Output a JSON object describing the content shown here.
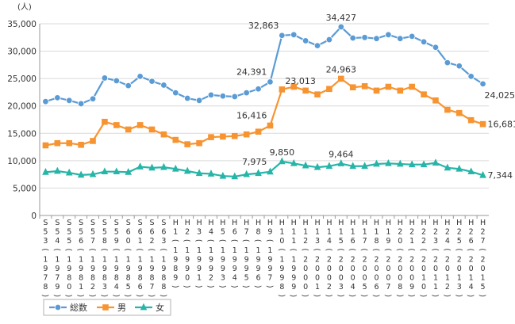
{
  "chart_data": {
    "type": "line",
    "ylabel": "(人)",
    "ylim": [
      0,
      35000
    ],
    "yticks": [
      "0",
      "5,000",
      "10,000",
      "15,000",
      "20,000",
      "25,000",
      "30,000",
      "35,000"
    ],
    "grid": true,
    "legend_position": "bottom-left",
    "categories": [
      {
        "era": "S53",
        "year": "1978"
      },
      {
        "era": "S54",
        "year": "1979"
      },
      {
        "era": "S55",
        "year": "1980"
      },
      {
        "era": "S56",
        "year": "1981"
      },
      {
        "era": "S57",
        "year": "1982"
      },
      {
        "era": "S58",
        "year": "1983"
      },
      {
        "era": "S59",
        "year": "1984"
      },
      {
        "era": "S60",
        "year": "1985"
      },
      {
        "era": "S61",
        "year": "1986"
      },
      {
        "era": "S62",
        "year": "1987"
      },
      {
        "era": "S63",
        "year": "1988"
      },
      {
        "era": "H1",
        "year": "1989"
      },
      {
        "era": "H2",
        "year": "1990"
      },
      {
        "era": "H3",
        "year": "1991"
      },
      {
        "era": "H4",
        "year": "1992"
      },
      {
        "era": "H5",
        "year": "1993"
      },
      {
        "era": "H6",
        "year": "1994"
      },
      {
        "era": "H7",
        "year": "1995"
      },
      {
        "era": "H8",
        "year": "1996"
      },
      {
        "era": "H9",
        "year": "1997"
      },
      {
        "era": "H10",
        "year": "1998"
      },
      {
        "era": "H11",
        "year": "1999"
      },
      {
        "era": "H12",
        "year": "2000"
      },
      {
        "era": "H13",
        "year": "2001"
      },
      {
        "era": "H14",
        "year": "2002"
      },
      {
        "era": "H15",
        "year": "2003"
      },
      {
        "era": "H16",
        "year": "2004"
      },
      {
        "era": "H17",
        "year": "2005"
      },
      {
        "era": "H18",
        "year": "2006"
      },
      {
        "era": "H19",
        "year": "2007"
      },
      {
        "era": "H20",
        "year": "2008"
      },
      {
        "era": "H21",
        "year": "2009"
      },
      {
        "era": "H22",
        "year": "2010"
      },
      {
        "era": "H23",
        "year": "2011"
      },
      {
        "era": "H24",
        "year": "2012"
      },
      {
        "era": "H25",
        "year": "2013"
      },
      {
        "era": "H26",
        "year": "2014"
      },
      {
        "era": "H27",
        "year": "2015"
      }
    ],
    "series": [
      {
        "name": "総数",
        "color": "#5b9bd5",
        "marker": "circle",
        "values": [
          20800,
          21500,
          21000,
          20400,
          21300,
          25100,
          24600,
          23700,
          25400,
          24500,
          23800,
          22400,
          21400,
          21000,
          22000,
          21800,
          21700,
          22400,
          23100,
          24391,
          32863,
          33000,
          31900,
          31000,
          32100,
          34427,
          32400,
          32500,
          32300,
          33000,
          32300,
          32700,
          31700,
          30700,
          27900,
          27300,
          25400,
          24025
        ]
      },
      {
        "name": "男",
        "color": "#f79432",
        "marker": "square",
        "values": [
          12800,
          13200,
          13200,
          12900,
          13600,
          17100,
          16500,
          15700,
          16500,
          15700,
          14800,
          13800,
          13000,
          13200,
          14300,
          14400,
          14500,
          14800,
          15300,
          16416,
          23013,
          23500,
          22800,
          22100,
          23100,
          24963,
          23400,
          23600,
          22800,
          23500,
          22800,
          23500,
          22100,
          21000,
          19300,
          18700,
          17400,
          16681
        ]
      },
      {
        "name": "女",
        "color": "#26b5a8",
        "marker": "triangle",
        "values": [
          7900,
          8100,
          7800,
          7400,
          7500,
          8000,
          8000,
          7900,
          8900,
          8700,
          8800,
          8500,
          8100,
          7700,
          7600,
          7200,
          7100,
          7500,
          7700,
          7975,
          9850,
          9500,
          9100,
          8800,
          9000,
          9464,
          9000,
          9000,
          9400,
          9500,
          9400,
          9300,
          9300,
          9600,
          8700,
          8500,
          8000,
          7344
        ]
      }
    ],
    "annotations": [
      {
        "series": 0,
        "index": 19,
        "text": "24,391",
        "pos": "above-left"
      },
      {
        "series": 0,
        "index": 20,
        "text": "32,863",
        "pos": "above-left"
      },
      {
        "series": 0,
        "index": 25,
        "text": "34,427",
        "pos": "above"
      },
      {
        "series": 0,
        "index": 37,
        "text": "24,025",
        "pos": "below-right"
      },
      {
        "series": 1,
        "index": 19,
        "text": "16,416",
        "pos": "above-left"
      },
      {
        "series": 1,
        "index": 20,
        "text": "23,013",
        "pos": "above-right"
      },
      {
        "series": 1,
        "index": 25,
        "text": "24,963",
        "pos": "above"
      },
      {
        "series": 1,
        "index": 37,
        "text": "16,681",
        "pos": "right"
      },
      {
        "series": 2,
        "index": 19,
        "text": "7,975",
        "pos": "above-left"
      },
      {
        "series": 2,
        "index": 20,
        "text": "9,850",
        "pos": "above"
      },
      {
        "series": 2,
        "index": 25,
        "text": "9,464",
        "pos": "above"
      },
      {
        "series": 2,
        "index": 37,
        "text": "7,344",
        "pos": "right"
      }
    ]
  }
}
